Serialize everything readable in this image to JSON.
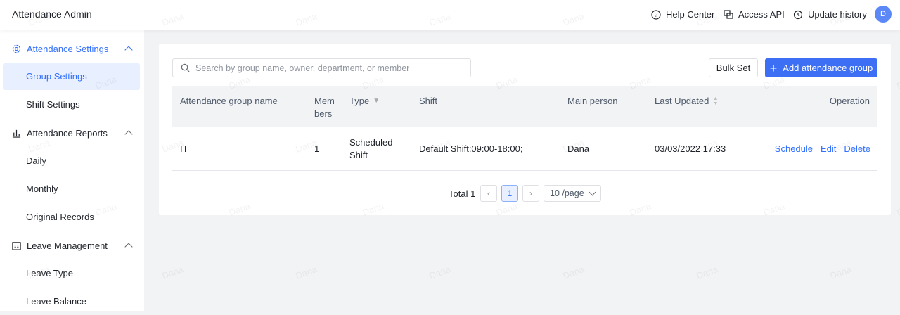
{
  "header": {
    "title": "Attendance Admin",
    "help": "Help Center",
    "api": "Access API",
    "history": "Update history",
    "avatar": "D"
  },
  "sidebar": {
    "sections": [
      {
        "label": "Attendance Settings",
        "items": [
          "Group Settings",
          "Shift Settings"
        ]
      },
      {
        "label": "Attendance Reports",
        "items": [
          "Daily",
          "Monthly",
          "Original Records"
        ]
      },
      {
        "label": "Leave Management",
        "items": [
          "Leave Type",
          "Leave Balance"
        ]
      }
    ]
  },
  "toolbar": {
    "search_placeholder": "Search by group name, owner, department, or member",
    "bulk_set": "Bulk Set",
    "add_group": "Add attendance group"
  },
  "table": {
    "columns": [
      "Attendance group name",
      "Mem bers",
      "Type",
      "Shift",
      "Main person",
      "Last Updated",
      "Operation"
    ],
    "rows": [
      {
        "name": "IT",
        "members": "1",
        "type": "Scheduled Shift",
        "shift": "Default Shift:09:00-18:00;",
        "main_person": "Dana",
        "last_updated": "03/03/2022 17:33",
        "ops": [
          "Schedule",
          "Edit",
          "Delete"
        ]
      }
    ]
  },
  "pagination": {
    "total": "Total 1",
    "page": "1",
    "page_size": "10 /page"
  },
  "watermark": "Dana",
  "colors": {
    "accent": "#3370ff",
    "button": "#3d6ff5"
  }
}
